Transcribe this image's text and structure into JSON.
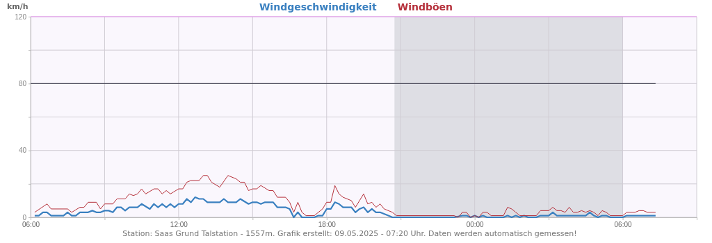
{
  "chart_data": {
    "type": "line",
    "ylabel": "km/h",
    "legend": "top",
    "grid": true,
    "marker": "none",
    "line_style": "solid",
    "xlim": [
      "2025-05-08T06:00",
      "2025-05-09T09:00"
    ],
    "xticks": [
      {
        "value": "2025-05-08T06:00",
        "label": "06:00"
      },
      {
        "value": "2025-05-08T09:00",
        "label": null
      },
      {
        "value": "2025-05-08T12:00",
        "label": "12:00"
      },
      {
        "value": "2025-05-08T15:00",
        "label": null
      },
      {
        "value": "2025-05-08T18:00",
        "label": "18:00"
      },
      {
        "value": "2025-05-08T21:00",
        "label": null
      },
      {
        "value": "2025-05-09T00:00",
        "label": "00:00"
      },
      {
        "value": "2025-05-09T03:00",
        "label": null
      },
      {
        "value": "2025-05-09T06:00",
        "label": "06:00"
      },
      {
        "value": "2025-05-09T09:00",
        "label": null
      }
    ],
    "ylim": [
      0,
      120
    ],
    "yticks": [
      0,
      {
        "value": 20,
        "label": null
      },
      40,
      {
        "value": 60,
        "label": null
      },
      80,
      {
        "value": 100,
        "label": null
      },
      120
    ],
    "bands": [
      {
        "axis": "x",
        "from": "2025-05-08T20:45",
        "to": "2025-05-09T06:00",
        "color": "#dedee4"
      }
    ],
    "ref_lines": [
      {
        "axis": "y",
        "value": 80,
        "color": "#333344"
      }
    ],
    "series": [
      {
        "name": "Windgeschwindigkeit",
        "color": "#3a80c0",
        "x": [
          "2025-05-08T06:10",
          "2025-05-08T06:20",
          "2025-05-08T06:30",
          "2025-05-08T06:40",
          "2025-05-08T06:50",
          "2025-05-08T07:20",
          "2025-05-08T07:30",
          "2025-05-08T07:40",
          "2025-05-08T07:50",
          "2025-05-08T08:00",
          "2025-05-08T08:20",
          "2025-05-08T08:30",
          "2025-05-08T08:40",
          "2025-05-08T08:50",
          "2025-05-08T09:00",
          "2025-05-08T09:10",
          "2025-05-08T09:20",
          "2025-05-08T09:30",
          "2025-05-08T09:40",
          "2025-05-08T09:50",
          "2025-05-08T10:00",
          "2025-05-08T10:20",
          "2025-05-08T10:30",
          "2025-05-08T10:50",
          "2025-05-08T11:00",
          "2025-05-08T11:10",
          "2025-05-08T11:20",
          "2025-05-08T11:30",
          "2025-05-08T11:40",
          "2025-05-08T11:50",
          "2025-05-08T12:00",
          "2025-05-08T12:10",
          "2025-05-08T12:20",
          "2025-05-08T12:30",
          "2025-05-08T12:40",
          "2025-05-08T12:50",
          "2025-05-08T13:00",
          "2025-05-08T13:10",
          "2025-05-08T13:30",
          "2025-05-08T13:40",
          "2025-05-08T13:50",
          "2025-05-08T14:00",
          "2025-05-08T14:20",
          "2025-05-08T14:30",
          "2025-05-08T14:50",
          "2025-05-08T15:00",
          "2025-05-08T15:10",
          "2025-05-08T15:20",
          "2025-05-08T15:30",
          "2025-05-08T15:50",
          "2025-05-08T16:00",
          "2025-05-08T16:20",
          "2025-05-08T16:30",
          "2025-05-08T16:40",
          "2025-05-08T16:50",
          "2025-05-08T17:00",
          "2025-05-08T17:30",
          "2025-05-08T17:40",
          "2025-05-08T17:50",
          "2025-05-08T18:00",
          "2025-05-08T18:10",
          "2025-05-08T18:20",
          "2025-05-08T18:30",
          "2025-05-08T18:40",
          "2025-05-08T19:00",
          "2025-05-08T19:10",
          "2025-05-08T19:20",
          "2025-05-08T19:30",
          "2025-05-08T19:40",
          "2025-05-08T19:50",
          "2025-05-08T20:00",
          "2025-05-08T20:10",
          "2025-05-08T20:30",
          "2025-05-08T20:40",
          "2025-05-08T23:10",
          "2025-05-08T23:30",
          "2025-05-08T23:40",
          "2025-05-08T23:50",
          "2025-05-09T00:00",
          "2025-05-09T00:10",
          "2025-05-09T00:20",
          "2025-05-09T00:30",
          "2025-05-09T01:10",
          "2025-05-09T01:20",
          "2025-05-09T01:30",
          "2025-05-09T01:40",
          "2025-05-09T01:50",
          "2025-05-09T02:00",
          "2025-05-09T02:10",
          "2025-05-09T02:30",
          "2025-05-09T02:40",
          "2025-05-09T03:00",
          "2025-05-09T03:10",
          "2025-05-09T03:20",
          "2025-05-09T04:30",
          "2025-05-09T04:40",
          "2025-05-09T04:50",
          "2025-05-09T05:00",
          "2025-05-09T05:10",
          "2025-05-09T05:20",
          "2025-05-09T05:30",
          "2025-05-09T06:00",
          "2025-05-09T06:10",
          "2025-05-09T07:20"
        ],
        "values": [
          1,
          1,
          3,
          3,
          1,
          1,
          3,
          1,
          1,
          3,
          3,
          4,
          3,
          3,
          4,
          4,
          3,
          6,
          6,
          4,
          6,
          6,
          8,
          5,
          8,
          6,
          8,
          6,
          8,
          6,
          8,
          8,
          11,
          9,
          12,
          11,
          11,
          9,
          9,
          9,
          11,
          9,
          9,
          11,
          8,
          9,
          9,
          8,
          9,
          9,
          6,
          6,
          5,
          0,
          3,
          0,
          0,
          1,
          1,
          5,
          5,
          9,
          8,
          6,
          6,
          3,
          5,
          6,
          3,
          5,
          3,
          3,
          1,
          0,
          0,
          1,
          1,
          0,
          1,
          0,
          1,
          0,
          0,
          1,
          0,
          1,
          0,
          1,
          0,
          0,
          1,
          1,
          3,
          1,
          1,
          3,
          1,
          0,
          1,
          1,
          0,
          0,
          1,
          1
        ]
      },
      {
        "name": "Windböen",
        "color": "#b52f3a",
        "x": [
          "2025-05-08T06:10",
          "2025-05-08T06:40",
          "2025-05-08T06:50",
          "2025-05-08T07:30",
          "2025-05-08T07:40",
          "2025-05-08T08:00",
          "2025-05-08T08:10",
          "2025-05-08T08:20",
          "2025-05-08T08:40",
          "2025-05-08T08:50",
          "2025-05-08T09:00",
          "2025-05-08T09:20",
          "2025-05-08T09:30",
          "2025-05-08T09:50",
          "2025-05-08T10:00",
          "2025-05-08T10:10",
          "2025-05-08T10:20",
          "2025-05-08T10:30",
          "2025-05-08T10:40",
          "2025-05-08T11:00",
          "2025-05-08T11:10",
          "2025-05-08T11:20",
          "2025-05-08T11:30",
          "2025-05-08T11:40",
          "2025-05-08T12:00",
          "2025-05-08T12:10",
          "2025-05-08T12:20",
          "2025-05-08T12:30",
          "2025-05-08T12:50",
          "2025-05-08T13:00",
          "2025-05-08T13:10",
          "2025-05-08T13:20",
          "2025-05-08T13:40",
          "2025-05-08T14:00",
          "2025-05-08T14:20",
          "2025-05-08T14:30",
          "2025-05-08T14:40",
          "2025-05-08T14:50",
          "2025-05-08T15:00",
          "2025-05-08T15:10",
          "2025-05-08T15:20",
          "2025-05-08T15:40",
          "2025-05-08T15:50",
          "2025-05-08T16:00",
          "2025-05-08T16:20",
          "2025-05-08T16:30",
          "2025-05-08T16:40",
          "2025-05-08T16:50",
          "2025-05-08T17:00",
          "2025-05-08T17:10",
          "2025-05-08T17:30",
          "2025-05-08T17:40",
          "2025-05-08T17:50",
          "2025-05-08T18:00",
          "2025-05-08T18:10",
          "2025-05-08T18:20",
          "2025-05-08T18:30",
          "2025-05-08T18:40",
          "2025-05-08T19:00",
          "2025-05-08T19:10",
          "2025-05-08T19:20",
          "2025-05-08T19:30",
          "2025-05-08T19:40",
          "2025-05-08T19:50",
          "2025-05-08T20:00",
          "2025-05-08T20:10",
          "2025-05-08T20:20",
          "2025-05-08T20:40",
          "2025-05-08T20:50",
          "2025-05-08T23:10",
          "2025-05-08T23:20",
          "2025-05-08T23:30",
          "2025-05-08T23:40",
          "2025-05-08T23:50",
          "2025-05-09T00:00",
          "2025-05-09T00:10",
          "2025-05-09T00:20",
          "2025-05-09T00:30",
          "2025-05-09T00:40",
          "2025-05-09T01:10",
          "2025-05-09T01:20",
          "2025-05-09T01:30",
          "2025-05-09T01:40",
          "2025-05-09T01:50",
          "2025-05-09T02:30",
          "2025-05-09T02:40",
          "2025-05-09T03:00",
          "2025-05-09T03:10",
          "2025-05-09T03:20",
          "2025-05-09T03:30",
          "2025-05-09T03:40",
          "2025-05-09T03:50",
          "2025-05-09T04:00",
          "2025-05-09T04:10",
          "2025-05-09T04:20",
          "2025-05-09T04:30",
          "2025-05-09T04:40",
          "2025-05-09T04:50",
          "2025-05-09T05:00",
          "2025-05-09T05:10",
          "2025-05-09T05:20",
          "2025-05-09T05:30",
          "2025-05-09T06:00",
          "2025-05-09T06:10",
          "2025-05-09T06:30",
          "2025-05-09T06:40",
          "2025-05-09T06:50",
          "2025-05-09T07:00",
          "2025-05-09T07:20"
        ],
        "values": [
          3,
          8,
          5,
          5,
          3,
          6,
          6,
          9,
          9,
          5,
          8,
          8,
          11,
          11,
          14,
          13,
          14,
          17,
          14,
          17,
          17,
          14,
          16,
          14,
          17,
          17,
          21,
          22,
          22,
          25,
          25,
          21,
          18,
          25,
          23,
          21,
          21,
          16,
          17,
          17,
          19,
          16,
          16,
          12,
          12,
          9,
          3,
          9,
          3,
          1,
          1,
          3,
          5,
          9,
          9,
          19,
          14,
          12,
          10,
          6,
          10,
          14,
          8,
          9,
          6,
          8,
          5,
          3,
          1,
          1,
          0,
          3,
          3,
          0,
          1,
          0,
          3,
          3,
          1,
          1,
          6,
          5,
          3,
          1,
          1,
          4,
          4,
          6,
          4,
          4,
          3,
          6,
          3,
          3,
          4,
          3,
          4,
          3,
          1,
          4,
          3,
          1,
          1,
          3,
          3,
          4,
          4,
          3,
          3
        ]
      }
    ],
    "annotations": [
      "Station: Saas Grund Talstation - 1557m. Grafik erstellt: 09.05.2025 - 07:20 Uhr. Daten werden automatisch gemessen!"
    ]
  }
}
